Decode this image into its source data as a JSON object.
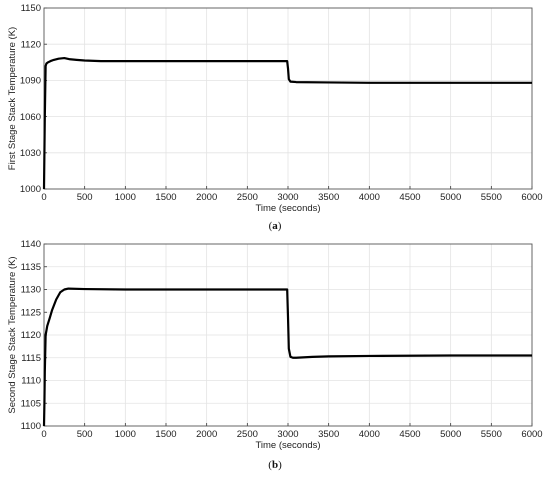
{
  "chart_data": [
    {
      "type": "line",
      "panel_caption": "(a)",
      "xlabel": "Time (seconds)",
      "ylabel": "First Stage Stack Temperature (K)",
      "xlim": [
        0,
        6000
      ],
      "ylim": [
        1000,
        1150
      ],
      "xticks": [
        "0",
        "500",
        "1000",
        "1500",
        "2000",
        "2500",
        "3000",
        "3500",
        "4000",
        "4500",
        "5000",
        "5500",
        "6000"
      ],
      "yticks": [
        "1000",
        "1030",
        "1060",
        "1090",
        "1120",
        "1150"
      ],
      "grid": true,
      "series": [
        {
          "color": "#000000",
          "x": [
            0,
            5,
            10,
            20,
            30,
            50,
            80,
            120,
            180,
            250,
            320,
            400,
            500,
            700,
            1000,
            1500,
            2000,
            2500,
            2990,
            3000,
            3010,
            3030,
            3100,
            3500,
            4000,
            5000,
            6000
          ],
          "y": [
            1000,
            1030,
            1060,
            1102,
            1104,
            1105,
            1106,
            1107,
            1108,
            1108.5,
            1107.5,
            1107,
            1106.5,
            1106,
            1106,
            1106,
            1106,
            1106,
            1106,
            1100,
            1091,
            1089,
            1088.6,
            1088.3,
            1088,
            1088,
            1088
          ]
        }
      ]
    },
    {
      "type": "line",
      "panel_caption": "(b)",
      "xlabel": "Time (seconds)",
      "ylabel": "Second Stage Stack Temperature (K)",
      "xlim": [
        0,
        6000
      ],
      "ylim": [
        1100,
        1140
      ],
      "xticks": [
        "0",
        "500",
        "1000",
        "1500",
        "2000",
        "2500",
        "3000",
        "3500",
        "4000",
        "4500",
        "5000",
        "5500",
        "6000"
      ],
      "yticks": [
        "1100",
        "1105",
        "1110",
        "1115",
        "1120",
        "1125",
        "1130",
        "1135",
        "1140"
      ],
      "grid": true,
      "series": [
        {
          "color": "#000000",
          "x": [
            0,
            5,
            10,
            20,
            40,
            70,
            100,
            150,
            200,
            250,
            300,
            500,
            1000,
            2000,
            2990,
            3000,
            3010,
            3030,
            3060,
            3100,
            3300,
            3500,
            4000,
            5000,
            6000
          ],
          "y": [
            1100,
            1105,
            1112,
            1120,
            1122,
            1123.7,
            1125.5,
            1127.8,
            1129.4,
            1130,
            1130.2,
            1130.1,
            1130,
            1130,
            1130,
            1124,
            1117,
            1115.2,
            1115,
            1115,
            1115.2,
            1115.3,
            1115.4,
            1115.5,
            1115.5
          ]
        }
      ]
    }
  ]
}
